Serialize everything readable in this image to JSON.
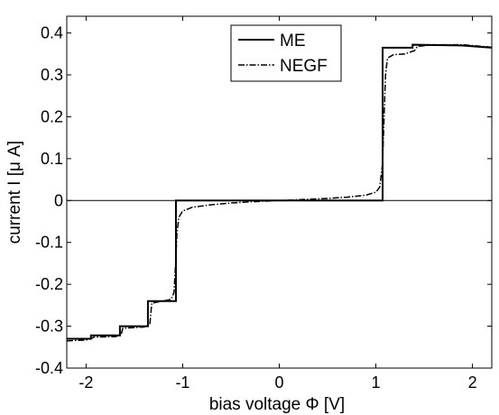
{
  "chart_data": {
    "type": "line",
    "xlabel": "bias voltage Φ [V]",
    "ylabel": "current I [μ A]",
    "xlim": [
      -2.2,
      2.2
    ],
    "ylim": [
      -0.4,
      0.44
    ],
    "xticks": [
      -2,
      -1,
      0,
      1,
      2
    ],
    "yticks": [
      -0.4,
      -0.3,
      -0.2,
      -0.1,
      0,
      0.1,
      0.2,
      0.3,
      0.4
    ],
    "xtick_labels": [
      "-2",
      "-1",
      "0",
      "1",
      "2"
    ],
    "ytick_labels": [
      "-0.4",
      "-0.3",
      "-0.2",
      "-0.1",
      "0",
      "0.1",
      "0.2",
      "0.3",
      "0.4"
    ],
    "grid": false,
    "zero_line": true,
    "legend": {
      "position": "top-center",
      "entries": [
        "ME",
        "NEGF"
      ]
    },
    "series": [
      {
        "name": "ME",
        "style": "solid",
        "color": "#000000",
        "points": [
          [
            -2.2,
            -0.33
          ],
          [
            -1.95,
            -0.33
          ],
          [
            -1.95,
            -0.322
          ],
          [
            -1.65,
            -0.322
          ],
          [
            -1.65,
            -0.3
          ],
          [
            -1.36,
            -0.3
          ],
          [
            -1.36,
            -0.24
          ],
          [
            -1.07,
            -0.24
          ],
          [
            -1.07,
            0.0
          ],
          [
            1.07,
            0.0
          ],
          [
            1.07,
            0.365
          ],
          [
            1.38,
            0.365
          ],
          [
            1.38,
            0.372
          ],
          [
            1.9,
            0.37
          ],
          [
            2.2,
            0.365
          ]
        ]
      },
      {
        "name": "NEGF",
        "style": "dashdot",
        "color": "#000000",
        "points": [
          [
            -2.2,
            -0.335
          ],
          [
            -2.0,
            -0.333
          ],
          [
            -1.95,
            -0.33
          ],
          [
            -1.92,
            -0.326
          ],
          [
            -1.7,
            -0.325
          ],
          [
            -1.64,
            -0.322
          ],
          [
            -1.62,
            -0.305
          ],
          [
            -1.4,
            -0.302
          ],
          [
            -1.34,
            -0.296
          ],
          [
            -1.32,
            -0.245
          ],
          [
            -1.12,
            -0.236
          ],
          [
            -1.09,
            -0.22
          ],
          [
            -1.075,
            -0.16
          ],
          [
            -1.06,
            -0.08
          ],
          [
            -1.04,
            -0.04
          ],
          [
            -1.0,
            -0.025
          ],
          [
            -0.9,
            -0.016
          ],
          [
            -0.7,
            -0.01
          ],
          [
            -0.5,
            -0.006
          ],
          [
            -0.3,
            -0.003
          ],
          [
            0.0,
            0.0
          ],
          [
            0.3,
            0.003
          ],
          [
            0.5,
            0.005
          ],
          [
            0.7,
            0.008
          ],
          [
            0.9,
            0.013
          ],
          [
            1.0,
            0.02
          ],
          [
            1.04,
            0.032
          ],
          [
            1.07,
            0.09
          ],
          [
            1.085,
            0.2
          ],
          [
            1.1,
            0.3
          ],
          [
            1.12,
            0.34
          ],
          [
            1.18,
            0.348
          ],
          [
            1.3,
            0.35
          ],
          [
            1.4,
            0.358
          ],
          [
            1.43,
            0.368
          ],
          [
            1.6,
            0.372
          ],
          [
            1.9,
            0.372
          ],
          [
            2.2,
            0.366
          ]
        ]
      }
    ]
  }
}
